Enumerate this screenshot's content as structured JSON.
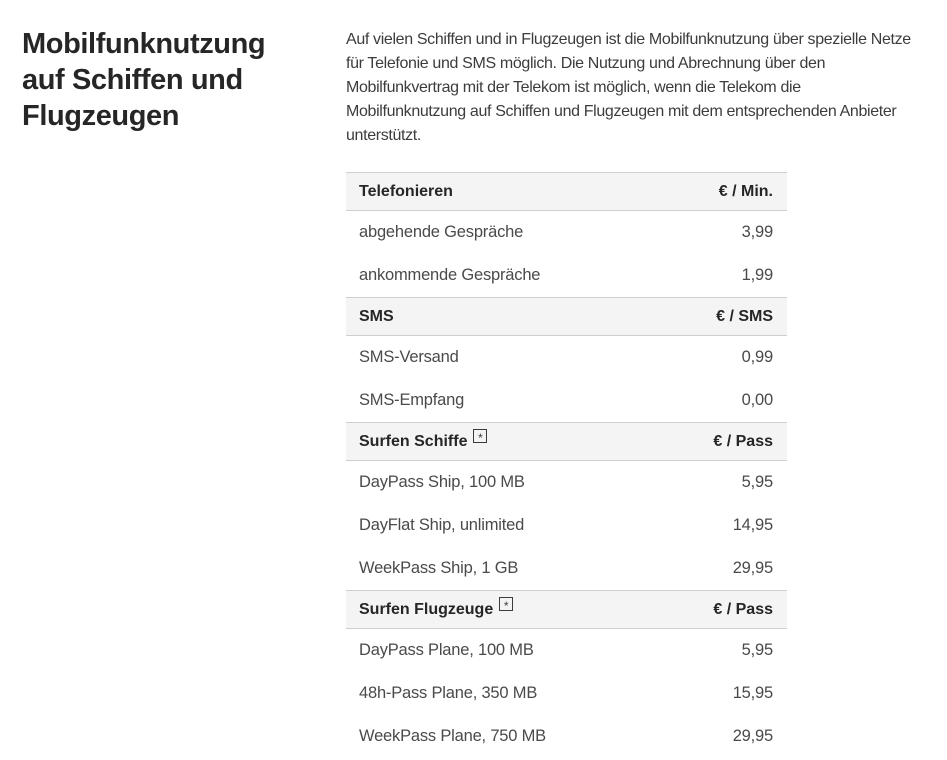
{
  "page": {
    "title": "Mobilfunknutzung auf Schiffen und Flugzeugen",
    "intro_lines": [
      "Auf vielen Schiffen und in Flugzeugen ist die Mobilfunknutzung über spezielle Netze",
      "für Telefonie und SMS möglich. Die Nutzung und Abrechnung über den",
      "Mobilfunkvertrag mit der Telekom ist möglich, wenn die Telekom die",
      "Mobilfunknutzung auf Schiffen und Flugzeugen mit dem entsprechenden Anbieter",
      "unterstützt."
    ]
  },
  "colors": {
    "text_primary": "#262626",
    "text_secondary": "#4a4a4a",
    "section_header_bg": "#f4f4f4",
    "divider": "#cfcfcf",
    "page_bg": "#ffffff"
  },
  "table": {
    "sections": [
      {
        "header": {
          "label": "Telefonieren",
          "unit": "€ / Min.",
          "footnote": false,
          "footnote_symbol": ""
        },
        "rows": [
          {
            "label": "abgehende Gespräche",
            "price": "3,99"
          },
          {
            "label": "ankommende Gespräche",
            "price": "1,99"
          }
        ]
      },
      {
        "header": {
          "label": "SMS",
          "unit": "€ / SMS",
          "footnote": false,
          "footnote_symbol": ""
        },
        "rows": [
          {
            "label": "SMS-Versand",
            "price": "0,99"
          },
          {
            "label": "SMS-Empfang",
            "price": "0,00"
          }
        ]
      },
      {
        "header": {
          "label": "Surfen Schiffe",
          "unit": "€ / Pass",
          "footnote": true,
          "footnote_symbol": "*"
        },
        "rows": [
          {
            "label": "DayPass Ship, 100 MB",
            "price": "5,95"
          },
          {
            "label": "DayFlat Ship, unlimited",
            "price": "14,95"
          },
          {
            "label": "WeekPass Ship, 1 GB",
            "price": "29,95"
          }
        ]
      },
      {
        "header": {
          "label": "Surfen Flugzeuge",
          "unit": "€ / Pass",
          "footnote": true,
          "footnote_symbol": "*"
        },
        "rows": [
          {
            "label": "DayPass Plane, 100 MB",
            "price": "5,95"
          },
          {
            "label": "48h-Pass Plane, 350 MB",
            "price": "15,95"
          },
          {
            "label": "WeekPass Plane, 750 MB",
            "price": "29,95"
          }
        ]
      }
    ]
  }
}
